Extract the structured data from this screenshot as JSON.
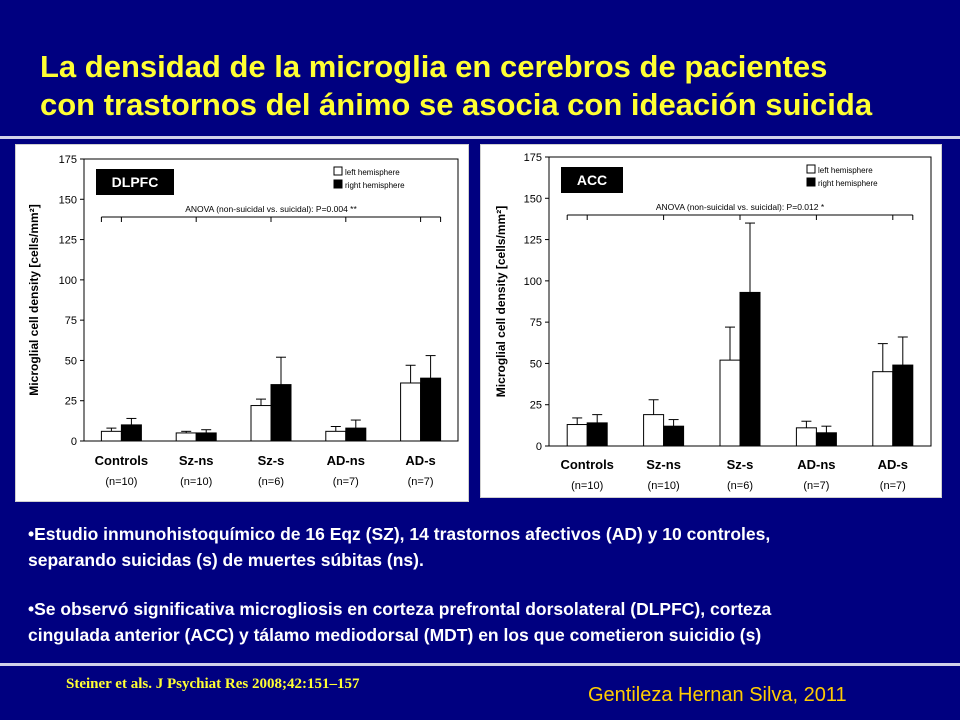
{
  "slide": {
    "title_line1": "La densidad de la microglia en cerebros de pacientes",
    "title_line2": "con trastornos del ánimo se asocia con ideación suicida",
    "bullet1_line1": "•Estudio inmunohistoquímico de 16 Eqz (SZ), 14 trastornos afectivos (AD) y 10 controles,",
    "bullet1_line2": "separando suicidas (s) de muertes súbitas (ns).",
    "bullet2_line1": "•Se observó significativa microgliosis en corteza prefrontal dorsolateral (DLPFC), corteza",
    "bullet2_line2": "cingulada anterior (ACC) y tálamo mediodorsal (MDT) en los que cometieron suicidio (s)",
    "citation": "Steiner et als. J Psychiat Res 2008;42:151–157",
    "credit": "Gentileza Hernan Silva, 2011",
    "colors": {
      "background": "#000080",
      "title": "#ffff33",
      "credit": "#ffcc00"
    }
  },
  "chart_data": [
    {
      "type": "bar",
      "panel_label": "DLPFC",
      "ylabel": "Microglial cell density [cells/mm²]",
      "ylim": [
        0,
        175
      ],
      "yticks": [
        "0",
        "25",
        "50",
        "75",
        "100",
        "125",
        "150",
        "175"
      ],
      "categories": [
        "Controls",
        "Sz-ns",
        "Sz-s",
        "AD-ns",
        "AD-s"
      ],
      "ns": [
        "(n=10)",
        "(n=10)",
        "(n=6)",
        "(n=7)",
        "(n=7)"
      ],
      "legend": [
        "left hemisphere",
        "right hemisphere"
      ],
      "anova": "ANOVA (non-suicidal vs. suicidal): P=0.004 **",
      "series": [
        {
          "name": "left hemisphere",
          "color": "#ffffff",
          "values": [
            6,
            5,
            22,
            6,
            36
          ],
          "errors": [
            2,
            1,
            4,
            3,
            11
          ]
        },
        {
          "name": "right hemisphere",
          "color": "#000000",
          "values": [
            10,
            5,
            35,
            8,
            39
          ],
          "errors": [
            4,
            2,
            17,
            5,
            14
          ]
        }
      ]
    },
    {
      "type": "bar",
      "panel_label": "ACC",
      "ylabel": "Microglial cell density [cells/mm²]",
      "ylim": [
        0,
        175
      ],
      "yticks": [
        "0",
        "25",
        "50",
        "75",
        "100",
        "125",
        "150",
        "175"
      ],
      "categories": [
        "Controls",
        "Sz-ns",
        "Sz-s",
        "AD-ns",
        "AD-s"
      ],
      "ns": [
        "(n=10)",
        "(n=10)",
        "(n=6)",
        "(n=7)",
        "(n=7)"
      ],
      "legend": [
        "left hemisphere",
        "right hemisphere"
      ],
      "anova": "ANOVA (non-suicidal vs. suicidal): P=0.012 *",
      "series": [
        {
          "name": "left hemisphere",
          "color": "#ffffff",
          "values": [
            13,
            19,
            52,
            11,
            45
          ],
          "errors": [
            4,
            9,
            20,
            4,
            17
          ]
        },
        {
          "name": "right hemisphere",
          "color": "#000000",
          "values": [
            14,
            12,
            93,
            8,
            49
          ],
          "errors": [
            5,
            4,
            42,
            4,
            17
          ]
        }
      ]
    }
  ]
}
